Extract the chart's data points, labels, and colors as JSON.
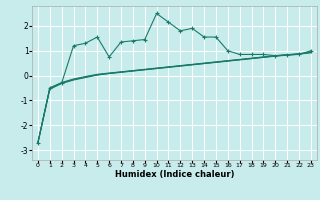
{
  "bg_color": "#c8ecec",
  "grid_color": "#ffffff",
  "line_color": "#1a7a6a",
  "xlabel": "Humidex (Indice chaleur)",
  "xlim": [
    -0.5,
    23.5
  ],
  "ylim": [
    -3.4,
    2.8
  ],
  "yticks": [
    -3,
    -2,
    -1,
    0,
    1,
    2
  ],
  "xticks": [
    0,
    1,
    2,
    3,
    4,
    5,
    6,
    7,
    8,
    9,
    10,
    11,
    12,
    13,
    14,
    15,
    16,
    17,
    18,
    19,
    20,
    21,
    22,
    23
  ],
  "series": [
    {
      "x": [
        0,
        1,
        2,
        3,
        4,
        5,
        6,
        7,
        8,
        9,
        10,
        11,
        12,
        13,
        14,
        15,
        16,
        17,
        18,
        19,
        20,
        21,
        22,
        23
      ],
      "y": [
        -2.7,
        -0.55,
        -0.32,
        -0.18,
        -0.08,
        0.02,
        0.08,
        0.13,
        0.18,
        0.23,
        0.28,
        0.33,
        0.38,
        0.43,
        0.48,
        0.53,
        0.58,
        0.63,
        0.68,
        0.73,
        0.78,
        0.82,
        0.86,
        0.92
      ],
      "marker": false
    },
    {
      "x": [
        0,
        1,
        2,
        3,
        4,
        5,
        6,
        7,
        8,
        9,
        10,
        11,
        12,
        13,
        14,
        15,
        16,
        17,
        18,
        19,
        20,
        21,
        22,
        23
      ],
      "y": [
        -2.7,
        -0.5,
        -0.28,
        -0.14,
        -0.04,
        0.05,
        0.1,
        0.15,
        0.2,
        0.25,
        0.3,
        0.35,
        0.4,
        0.45,
        0.5,
        0.55,
        0.6,
        0.65,
        0.7,
        0.75,
        0.8,
        0.84,
        0.88,
        0.94
      ],
      "marker": false
    },
    {
      "x": [
        0,
        1,
        2,
        3,
        4,
        5,
        6,
        7,
        8,
        9,
        10,
        11,
        12,
        13,
        14,
        15,
        16,
        17,
        18,
        19,
        20,
        21,
        22,
        23
      ],
      "y": [
        -2.7,
        -0.52,
        -0.3,
        -0.16,
        -0.06,
        0.03,
        0.09,
        0.14,
        0.19,
        0.24,
        0.29,
        0.34,
        0.39,
        0.44,
        0.49,
        0.54,
        0.59,
        0.64,
        0.69,
        0.74,
        0.79,
        0.83,
        0.87,
        0.93
      ],
      "marker": false
    },
    {
      "x": [
        0,
        1,
        2,
        3,
        4,
        5,
        6,
        7,
        8,
        9,
        10,
        11,
        12,
        13,
        14,
        15,
        16,
        17,
        18,
        19,
        20,
        21,
        22,
        23
      ],
      "y": [
        -2.7,
        -0.5,
        -0.3,
        1.2,
        1.3,
        1.55,
        0.75,
        1.35,
        1.4,
        1.45,
        2.5,
        2.15,
        1.8,
        1.9,
        1.55,
        1.55,
        1.0,
        0.85,
        0.85,
        0.85,
        0.8,
        0.83,
        0.85,
        1.0
      ],
      "marker": true
    }
  ]
}
